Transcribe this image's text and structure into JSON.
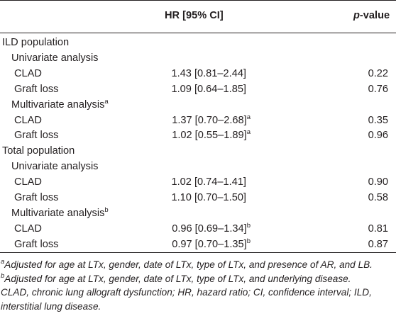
{
  "header": {
    "hr_label": "HR [95% CI]",
    "p_prefix": "p",
    "p_suffix": "-value"
  },
  "rows": [
    {
      "label": "ILD population",
      "level": 0,
      "hr": "",
      "hr_sup": "",
      "p": ""
    },
    {
      "label": "Univariate analysis",
      "level": 1,
      "hr": "",
      "hr_sup": "",
      "p": ""
    },
    {
      "label": "CLAD",
      "level": 2,
      "hr": "1.43 [0.81–2.44]",
      "hr_sup": "",
      "p": "0.22"
    },
    {
      "label": "Graft loss",
      "level": 2,
      "hr": "1.09 [0.64–1.85]",
      "hr_sup": "",
      "p": "0.76"
    },
    {
      "label": "Multivariate analysis",
      "label_sup": "a",
      "level": 1,
      "hr": "",
      "hr_sup": "",
      "p": ""
    },
    {
      "label": "CLAD",
      "level": 2,
      "hr": "1.37 [0.70–2.68]",
      "hr_sup": "a",
      "p": "0.35"
    },
    {
      "label": "Graft loss",
      "level": 2,
      "hr": "1.02 [0.55–1.89]",
      "hr_sup": "a",
      "p": "0.96"
    },
    {
      "label": "Total population",
      "level": 0,
      "hr": "",
      "hr_sup": "",
      "p": ""
    },
    {
      "label": "Univariate analysis",
      "level": 1,
      "hr": "",
      "hr_sup": "",
      "p": ""
    },
    {
      "label": "CLAD",
      "level": 2,
      "hr": "1.02 [0.74–1.41]",
      "hr_sup": "",
      "p": "0.90"
    },
    {
      "label": "Graft loss",
      "level": 2,
      "hr": "1.10 [0.70–1.50]",
      "hr_sup": "",
      "p": "0.58"
    },
    {
      "label": "Multivariate analysis",
      "label_sup": "b",
      "level": 1,
      "hr": "",
      "hr_sup": "",
      "p": ""
    },
    {
      "label": "CLAD",
      "level": 2,
      "hr": "0.96 [0.69–1.34]",
      "hr_sup": "b",
      "p": "0.81"
    },
    {
      "label": "Graft loss",
      "level": 2,
      "hr": "0.97 [0.70–1.35]",
      "hr_sup": "b",
      "p": "0.87"
    }
  ],
  "footnotes": {
    "a_mark": "a",
    "a_text": "Adjusted for age at LTx, gender, date of LTx, type of LTx, and presence of AR, and LB.",
    "b_mark": "b",
    "b_text": "Adjusted for age at LTx, gender, date of LTx, type of LTx, and underlying disease.",
    "abbrev_line1": "CLAD, chronic lung allograft dysfunction; HR, hazard ratio; CI, confidence interval; ILD,",
    "abbrev_line2": "interstitial lung disease."
  }
}
